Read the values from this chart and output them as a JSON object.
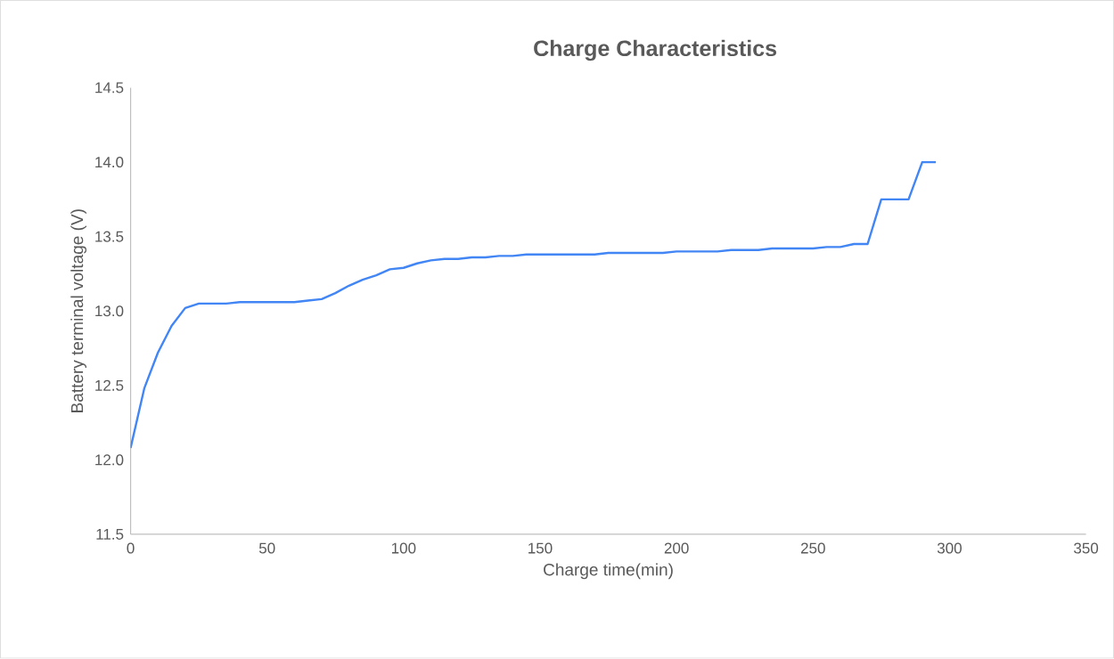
{
  "chart_data": {
    "type": "line",
    "title": "Charge Characteristics",
    "xlabel": "Charge time(min)",
    "ylabel": "Battery terminal voltage (V)",
    "x": [
      0,
      5,
      10,
      15,
      20,
      25,
      30,
      35,
      40,
      45,
      50,
      55,
      60,
      65,
      70,
      75,
      80,
      85,
      90,
      95,
      100,
      105,
      110,
      115,
      120,
      125,
      130,
      135,
      140,
      145,
      150,
      155,
      160,
      165,
      170,
      175,
      180,
      185,
      190,
      195,
      200,
      205,
      210,
      215,
      220,
      225,
      230,
      235,
      240,
      245,
      250,
      255,
      260,
      265,
      270,
      275,
      280,
      285,
      290,
      295
    ],
    "series": [
      {
        "color": "#4285f4",
        "values": [
          12.08,
          12.48,
          12.72,
          12.9,
          13.02,
          13.05,
          13.05,
          13.05,
          13.06,
          13.06,
          13.06,
          13.06,
          13.06,
          13.07,
          13.08,
          13.12,
          13.17,
          13.21,
          13.24,
          13.28,
          13.29,
          13.32,
          13.34,
          13.35,
          13.35,
          13.36,
          13.36,
          13.37,
          13.37,
          13.38,
          13.38,
          13.38,
          13.38,
          13.38,
          13.38,
          13.39,
          13.39,
          13.39,
          13.39,
          13.39,
          13.4,
          13.4,
          13.4,
          13.4,
          13.41,
          13.41,
          13.41,
          13.42,
          13.42,
          13.42,
          13.42,
          13.43,
          13.43,
          13.45,
          13.45,
          13.75,
          13.75,
          13.75,
          14.0,
          14.0
        ]
      }
    ],
    "xlim": [
      0,
      350
    ],
    "xticks": [
      0,
      50,
      100,
      150,
      200,
      250,
      300,
      350
    ],
    "ylim": [
      11.5,
      14.5
    ],
    "yticks": [
      {
        "value": 11.5,
        "label": "11.5"
      },
      {
        "value": 12,
        "label": "12.0"
      },
      {
        "value": 12.5,
        "label": "12.5"
      },
      {
        "value": 13,
        "label": "13.0"
      },
      {
        "value": 13.5,
        "label": "13.5"
      },
      {
        "value": 14,
        "label": "14.0"
      },
      {
        "value": 14.5,
        "label": "14.5"
      }
    ],
    "marker": "none",
    "line_style": "solid"
  }
}
